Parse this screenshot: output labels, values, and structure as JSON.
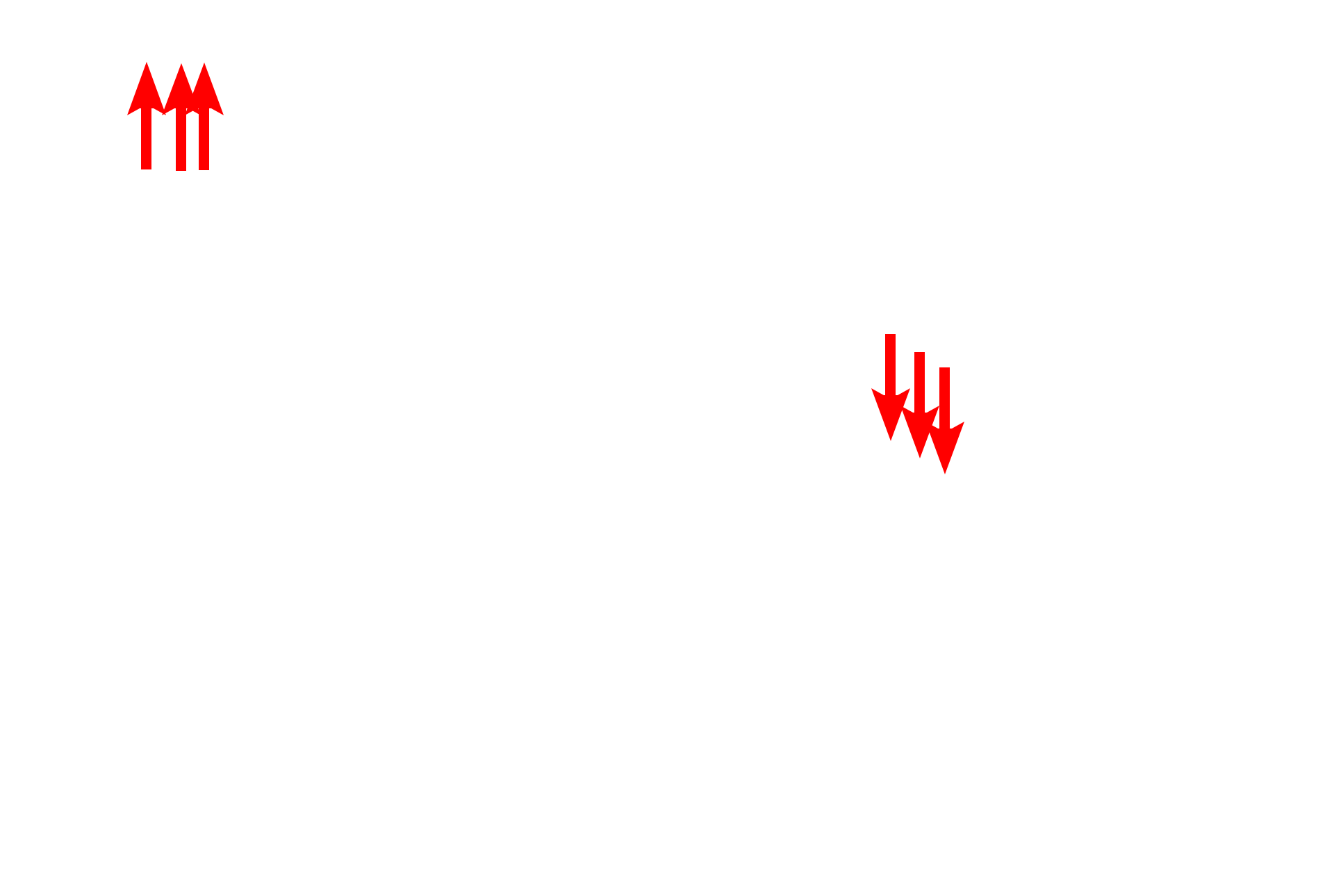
{
  "arrow_color": "#ff0000",
  "background_color": "#ffffff",
  "arrow_groups": [
    {
      "direction": "up",
      "arrows": [
        {
          "icon": "arrow-up-icon"
        },
        {
          "icon": "arrow-up-icon"
        },
        {
          "icon": "arrow-up-icon"
        }
      ]
    },
    {
      "direction": "down",
      "arrows": [
        {
          "icon": "arrow-down-icon"
        },
        {
          "icon": "arrow-down-icon"
        },
        {
          "icon": "arrow-down-icon"
        }
      ]
    }
  ]
}
